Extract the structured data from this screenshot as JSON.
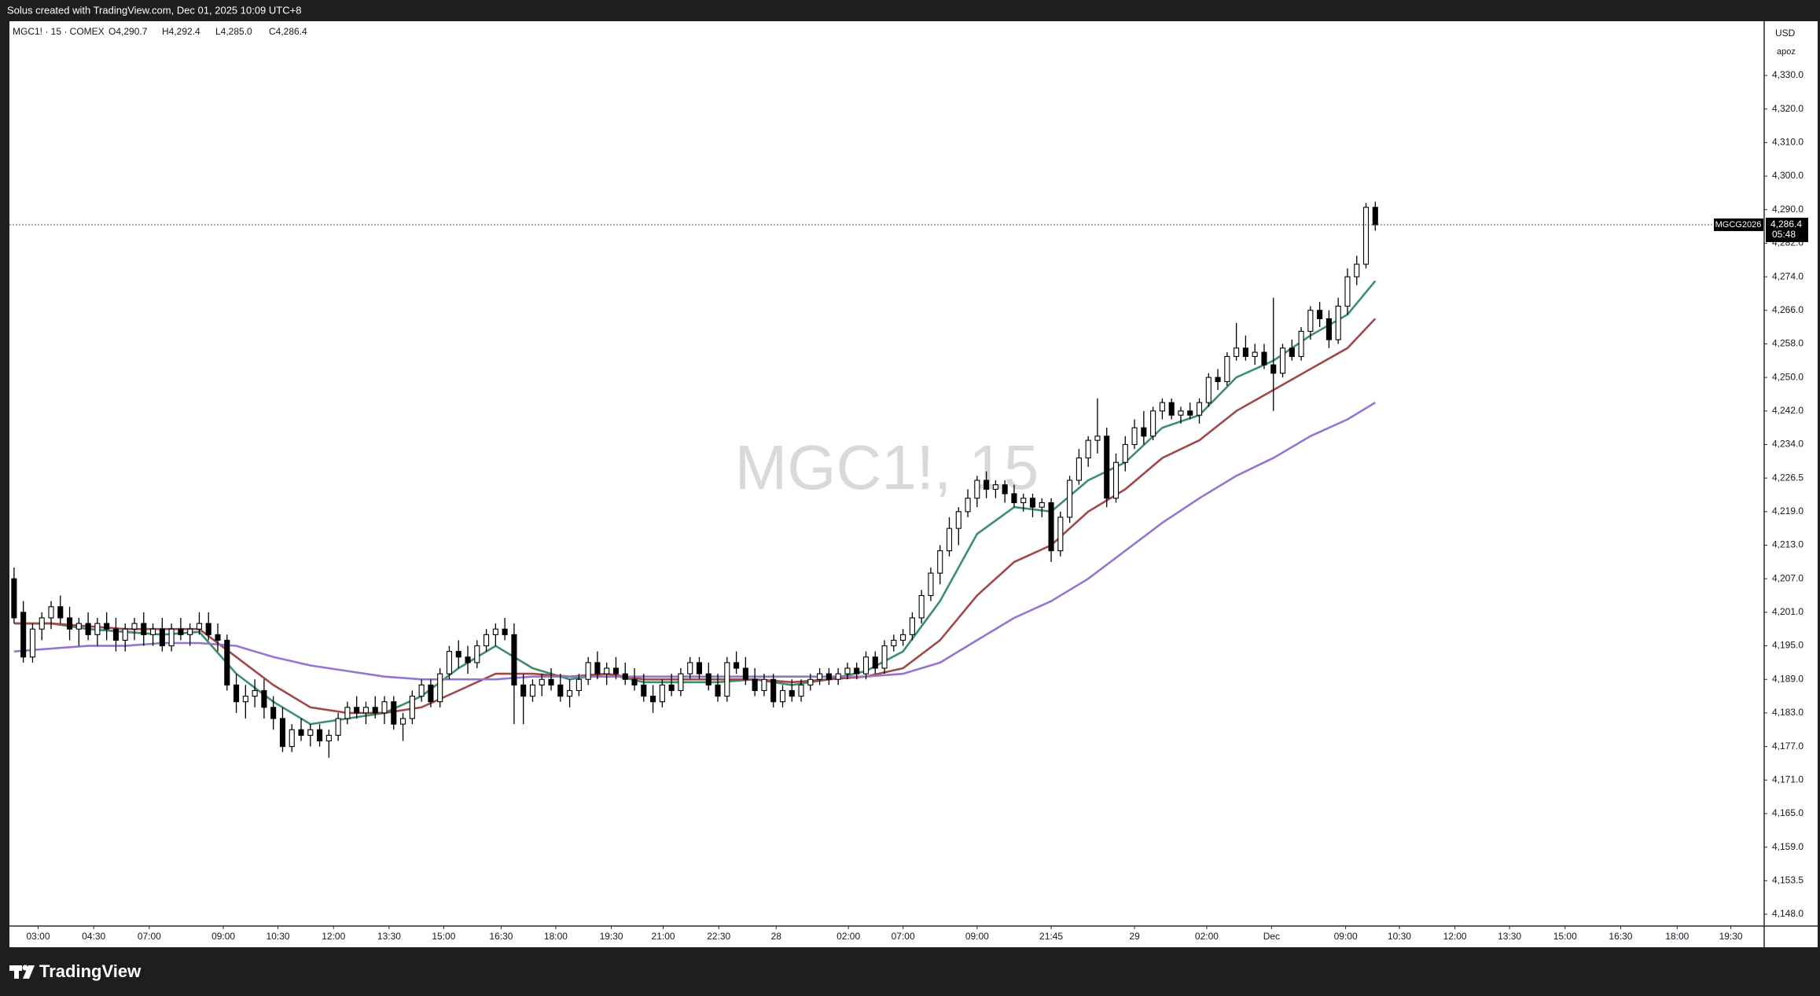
{
  "page": {
    "banner": "Solus created with TradingView.com, Dec 01, 2025 10:09 UTC+8",
    "symbol_info": "MGC1! · 15 · COMEX",
    "ohlc_legend": [
      "O4,290.7",
      "H4,292.4",
      "L4,285.0",
      "C4,286.4"
    ],
    "watermark": "MGC1!, 15",
    "currency": "USD",
    "scale_mode": "apoz",
    "brand": "TradingView"
  },
  "chart_data": {
    "type": "candlestick",
    "ohlc": [
      [
        4207,
        4209,
        4199,
        4200
      ],
      [
        4201,
        4203,
        4192,
        4193
      ],
      [
        4193,
        4199,
        4192,
        4198
      ],
      [
        4198,
        4201,
        4196,
        4200
      ],
      [
        4200,
        4203,
        4198,
        4202
      ],
      [
        4202,
        4204,
        4199,
        4200
      ],
      [
        4200,
        4202,
        4196,
        4198
      ],
      [
        4198,
        4200,
        4195,
        4199
      ],
      [
        4199,
        4201,
        4196,
        4197
      ],
      [
        4197,
        4200,
        4195,
        4199
      ],
      [
        4199,
        4201,
        4196,
        4198
      ],
      [
        4198,
        4200,
        4194,
        4196
      ],
      [
        4196,
        4199,
        4194,
        4198
      ],
      [
        4198,
        4200,
        4196,
        4199
      ],
      [
        4199,
        4201,
        4195,
        4197
      ],
      [
        4197,
        4199,
        4195,
        4198
      ],
      [
        4198,
        4200,
        4194,
        4195
      ],
      [
        4195,
        4199,
        4194,
        4198
      ],
      [
        4198,
        4200,
        4196,
        4197
      ],
      [
        4197,
        4199,
        4195,
        4198
      ],
      [
        4198,
        4201,
        4197,
        4199
      ],
      [
        4199,
        4201,
        4196,
        4197
      ],
      [
        4197,
        4199,
        4194,
        4196
      ],
      [
        4196,
        4197,
        4187,
        4188
      ],
      [
        4188,
        4190,
        4183,
        4185
      ],
      [
        4185,
        4188,
        4182,
        4186
      ],
      [
        4186,
        4189,
        4184,
        4187
      ],
      [
        4187,
        4189,
        4182,
        4184
      ],
      [
        4184,
        4186,
        4180,
        4182
      ],
      [
        4182,
        4184,
        4176,
        4177
      ],
      [
        4177,
        4181,
        4176,
        4180
      ],
      [
        4180,
        4182,
        4178,
        4179
      ],
      [
        4179,
        4181,
        4177,
        4180
      ],
      [
        4180,
        4181,
        4177,
        4178
      ],
      [
        4178,
        4180,
        4175,
        4179
      ],
      [
        4179,
        4183,
        4178,
        4182
      ],
      [
        4182,
        4185,
        4181,
        4184
      ],
      [
        4184,
        4186,
        4182,
        4183
      ],
      [
        4183,
        4185,
        4181,
        4184
      ],
      [
        4184,
        4186,
        4182,
        4183
      ],
      [
        4183,
        4186,
        4181,
        4185
      ],
      [
        4185,
        4186,
        4180,
        4181
      ],
      [
        4181,
        4183,
        4178,
        4182
      ],
      [
        4182,
        4187,
        4181,
        4186
      ],
      [
        4186,
        4189,
        4185,
        4188
      ],
      [
        4188,
        4189,
        4184,
        4185
      ],
      [
        4185,
        4191,
        4184,
        4190
      ],
      [
        4190,
        4195,
        4189,
        4194
      ],
      [
        4194,
        4196,
        4191,
        4193
      ],
      [
        4193,
        4195,
        4190,
        4192
      ],
      [
        4192,
        4196,
        4191,
        4195
      ],
      [
        4195,
        4198,
        4194,
        4197
      ],
      [
        4197,
        4199,
        4195,
        4198
      ],
      [
        4198,
        4200,
        4196,
        4197
      ],
      [
        4197,
        4199,
        4181,
        4188
      ],
      [
        4188,
        4190,
        4181,
        4186
      ],
      [
        4186,
        4189,
        4185,
        4188
      ],
      [
        4188,
        4190,
        4186,
        4189
      ],
      [
        4189,
        4191,
        4187,
        4188
      ],
      [
        4188,
        4190,
        4185,
        4186
      ],
      [
        4186,
        4189,
        4184,
        4187
      ],
      [
        4187,
        4190,
        4186,
        4189
      ],
      [
        4189,
        4193,
        4188,
        4192
      ],
      [
        4192,
        4194,
        4189,
        4190
      ],
      [
        4190,
        4192,
        4188,
        4191
      ],
      [
        4191,
        4193,
        4189,
        4190
      ],
      [
        4190,
        4192,
        4188,
        4189
      ],
      [
        4189,
        4191,
        4187,
        4188
      ],
      [
        4188,
        4190,
        4185,
        4186
      ],
      [
        4186,
        4188,
        4183,
        4185
      ],
      [
        4185,
        4189,
        4184,
        4188
      ],
      [
        4188,
        4190,
        4186,
        4187
      ],
      [
        4187,
        4191,
        4186,
        4190
      ],
      [
        4190,
        4193,
        4189,
        4192
      ],
      [
        4192,
        4193,
        4189,
        4190
      ],
      [
        4190,
        4192,
        4187,
        4188
      ],
      [
        4188,
        4190,
        4185,
        4186
      ],
      [
        4186,
        4193,
        4185,
        4192
      ],
      [
        4192,
        4194,
        4190,
        4191
      ],
      [
        4191,
        4193,
        4188,
        4189
      ],
      [
        4189,
        4191,
        4186,
        4187
      ],
      [
        4187,
        4190,
        4186,
        4189
      ],
      [
        4189,
        4190,
        4184,
        4185
      ],
      [
        4185,
        4188,
        4184,
        4187
      ],
      [
        4187,
        4189,
        4185,
        4186
      ],
      [
        4186,
        4189,
        4185,
        4188
      ],
      [
        4188,
        4190,
        4187,
        4189
      ],
      [
        4189,
        4191,
        4188,
        4190
      ],
      [
        4190,
        4191,
        4188,
        4189
      ],
      [
        4189,
        4191,
        4188,
        4190
      ],
      [
        4190,
        4192,
        4189,
        4191
      ],
      [
        4191,
        4192,
        4189,
        4190
      ],
      [
        4190,
        4194,
        4189,
        4193
      ],
      [
        4193,
        4194,
        4190,
        4191
      ],
      [
        4191,
        4196,
        4190,
        4195
      ],
      [
        4195,
        4197,
        4194,
        4196
      ],
      [
        4196,
        4198,
        4195,
        4197
      ],
      [
        4197,
        4201,
        4196,
        4200
      ],
      [
        4200,
        4205,
        4199,
        4204
      ],
      [
        4204,
        4209,
        4203,
        4208
      ],
      [
        4208,
        4213,
        4206,
        4212
      ],
      [
        4212,
        4218,
        4211,
        4216
      ],
      [
        4216,
        4220,
        4213,
        4219
      ],
      [
        4219,
        4224,
        4218,
        4222
      ],
      [
        4222,
        4227,
        4220,
        4226
      ],
      [
        4226,
        4228,
        4222,
        4224
      ],
      [
        4224,
        4226,
        4222,
        4225
      ],
      [
        4225,
        4226,
        4221,
        4223
      ],
      [
        4223,
        4225,
        4220,
        4221
      ],
      [
        4221,
        4223,
        4219,
        4222
      ],
      [
        4222,
        4223,
        4218,
        4220
      ],
      [
        4220,
        4222,
        4218,
        4221
      ],
      [
        4221,
        4222,
        4210,
        4212
      ],
      [
        4212,
        4219,
        4211,
        4218
      ],
      [
        4218,
        4227,
        4217,
        4226
      ],
      [
        4226,
        4233,
        4225,
        4231
      ],
      [
        4231,
        4236,
        4229,
        4235
      ],
      [
        4235,
        4245,
        4232,
        4236
      ],
      [
        4236,
        4238,
        4220,
        4222
      ],
      [
        4222,
        4232,
        4221,
        4230
      ],
      [
        4230,
        4236,
        4228,
        4234
      ],
      [
        4234,
        4240,
        4233,
        4238
      ],
      [
        4238,
        4242,
        4234,
        4236
      ],
      [
        4236,
        4243,
        4235,
        4242
      ],
      [
        4242,
        4245,
        4240,
        4244
      ],
      [
        4244,
        4245,
        4240,
        4241
      ],
      [
        4241,
        4243,
        4239,
        4242
      ],
      [
        4242,
        4244,
        4240,
        4241
      ],
      [
        4241,
        4245,
        4239,
        4244
      ],
      [
        4244,
        4251,
        4243,
        4250
      ],
      [
        4250,
        4252,
        4247,
        4249
      ],
      [
        4249,
        4256,
        4248,
        4255
      ],
      [
        4255,
        4263,
        4254,
        4257
      ],
      [
        4257,
        4260,
        4254,
        4255
      ],
      [
        4255,
        4258,
        4253,
        4256
      ],
      [
        4256,
        4258,
        4252,
        4253
      ],
      [
        4253,
        4269,
        4242,
        4251
      ],
      [
        4251,
        4258,
        4250,
        4257
      ],
      [
        4257,
        4259,
        4254,
        4255
      ],
      [
        4255,
        4262,
        4254,
        4261
      ],
      [
        4261,
        4267,
        4259,
        4266
      ],
      [
        4266,
        4268,
        4262,
        4264
      ],
      [
        4264,
        4266,
        4257,
        4259
      ],
      [
        4259,
        4269,
        4258,
        4267
      ],
      [
        4267,
        4276,
        4265,
        4274
      ],
      [
        4274,
        4279,
        4272,
        4277
      ],
      [
        4277,
        4292,
        4276,
        4290.7
      ],
      [
        4290.7,
        4292.4,
        4285,
        4286.4
      ]
    ],
    "up_color": "#ffffff",
    "down_color": "#000000",
    "wick_color": "#000000",
    "series": [
      {
        "color": "#3d8f6c",
        "x": [
          0,
          4,
          8,
          12,
          16,
          20,
          24,
          28,
          32,
          36,
          40,
          44,
          48,
          52,
          56,
          60,
          64,
          68,
          72,
          76,
          80,
          84,
          88,
          92,
          96,
          100,
          104,
          108,
          112,
          116,
          120,
          124,
          128,
          132,
          136,
          140,
          144,
          147
        ],
        "values": [
          4199,
          4199,
          4198,
          4197.5,
          4197,
          4197.5,
          4190,
          4185,
          4181,
          4182,
          4183,
          4186,
          4191,
          4195,
          4191,
          4189,
          4190,
          4188.5,
          4188.5,
          4188.5,
          4189,
          4188,
          4189,
          4190.5,
          4194,
          4203,
          4215,
          4220,
          4219,
          4226,
          4230,
          4238,
          4241,
          4250,
          4254,
          4260,
          4265,
          4273
        ]
      },
      {
        "color": "#a3484a",
        "x": [
          0,
          4,
          8,
          12,
          16,
          20,
          24,
          28,
          32,
          36,
          40,
          44,
          48,
          52,
          56,
          60,
          64,
          68,
          72,
          76,
          80,
          84,
          88,
          92,
          96,
          100,
          104,
          108,
          112,
          116,
          120,
          124,
          128,
          132,
          136,
          140,
          144,
          147
        ],
        "values": [
          4199,
          4199,
          4198.5,
          4198,
          4198,
          4198,
          4193,
          4188,
          4184,
          4183,
          4183,
          4184,
          4187,
          4190,
          4190,
          4189.5,
          4190,
          4189,
          4189,
          4189,
          4189,
          4188.5,
          4189,
          4189.5,
          4191,
          4196,
          4204,
          4210,
          4213,
          4219,
          4224,
          4231,
          4235,
          4242,
          4247,
          4252,
          4257,
          4264
        ]
      },
      {
        "color": "#9575d2",
        "x": [
          0,
          4,
          8,
          12,
          16,
          20,
          24,
          28,
          32,
          36,
          40,
          44,
          48,
          52,
          56,
          60,
          64,
          68,
          72,
          76,
          80,
          84,
          88,
          92,
          96,
          100,
          104,
          108,
          112,
          116,
          120,
          124,
          128,
          132,
          136,
          140,
          144,
          147
        ],
        "values": [
          4194,
          4194.5,
          4195,
          4195,
          4195.5,
          4195.5,
          4195,
          4193,
          4191.5,
          4190.5,
          4189.5,
          4189,
          4189,
          4189,
          4189.5,
          4189.5,
          4189.5,
          4189.5,
          4189.5,
          4189.5,
          4189.5,
          4189.5,
          4189.5,
          4189.5,
          4190,
          4192,
          4196,
          4200,
          4203,
          4207,
          4212,
          4217,
          4222,
          4227,
          4231,
          4236,
          4240,
          4244
        ]
      }
    ],
    "xlim": [
      -0.5,
      189
    ],
    "xticks": [
      {
        "value": 2.6,
        "label": "03:00"
      },
      {
        "value": 8.6,
        "label": "04:30"
      },
      {
        "value": 14.6,
        "label": "07:00"
      },
      {
        "value": 22.6,
        "label": "09:00"
      },
      {
        "value": 28.5,
        "label": "10:30"
      },
      {
        "value": 34.5,
        "label": "12:00"
      },
      {
        "value": 40.5,
        "label": "13:30"
      },
      {
        "value": 46.4,
        "label": "15:00"
      },
      {
        "value": 52.6,
        "label": "16:30"
      },
      {
        "value": 58.5,
        "label": "18:00"
      },
      {
        "value": 64.5,
        "label": "19:30"
      },
      {
        "value": 70.1,
        "label": "21:00"
      },
      {
        "value": 76.1,
        "label": "22:30"
      },
      {
        "value": 82.3,
        "label": "28"
      },
      {
        "value": 90.1,
        "label": "02:00"
      },
      {
        "value": 96,
        "label": "07:00"
      },
      {
        "value": 104,
        "label": "09:00"
      },
      {
        "value": 112,
        "label": "21:45"
      },
      {
        "value": 121,
        "label": "29"
      },
      {
        "value": 128.8,
        "label": "02:00"
      },
      {
        "value": 135.8,
        "label": "Dec"
      },
      {
        "value": 143.8,
        "label": "09:00"
      },
      {
        "value": 149.6,
        "label": "10:30"
      },
      {
        "value": 155.6,
        "label": "12:00"
      },
      {
        "value": 161.5,
        "label": "13:30"
      },
      {
        "value": 167.5,
        "label": "15:00"
      },
      {
        "value": 173.5,
        "label": "16:30"
      },
      {
        "value": 179.6,
        "label": "18:00"
      },
      {
        "value": 185.4,
        "label": "19:30"
      }
    ],
    "ylim": [
      4146.1,
      4346.2
    ],
    "yticks": [
      {
        "value": 4330,
        "label": "4,330.0"
      },
      {
        "value": 4320,
        "label": "4,320.0"
      },
      {
        "value": 4310,
        "label": "4,310.0"
      },
      {
        "value": 4300,
        "label": "4,300.0"
      },
      {
        "value": 4290,
        "label": "4,290.0"
      },
      {
        "value": 4282,
        "label": "4,282.0"
      },
      {
        "value": 4274,
        "label": "4,274.0"
      },
      {
        "value": 4266,
        "label": "4,266.0"
      },
      {
        "value": 4258,
        "label": "4,258.0"
      },
      {
        "value": 4250,
        "label": "4,250.0"
      },
      {
        "value": 4242,
        "label": "4,242.0"
      },
      {
        "value": 4234,
        "label": "4,234.0"
      },
      {
        "value": 4226.5,
        "label": "4,226.5"
      },
      {
        "value": 4219,
        "label": "4,219.0"
      },
      {
        "value": 4213,
        "label": "4,213.0"
      },
      {
        "value": 4207,
        "label": "4,207.0"
      },
      {
        "value": 4201,
        "label": "4,201.0"
      },
      {
        "value": 4195,
        "label": "4,195.0"
      },
      {
        "value": 4189,
        "label": "4,189.0"
      },
      {
        "value": 4183,
        "label": "4,183.0"
      },
      {
        "value": 4177,
        "label": "4,177.0"
      },
      {
        "value": 4171,
        "label": "4,171.0"
      },
      {
        "value": 4165,
        "label": "4,165.0"
      },
      {
        "value": 4159,
        "label": "4,159.0"
      },
      {
        "value": 4153.5,
        "label": "4,153.5"
      },
      {
        "value": 4148,
        "label": "4,148.0"
      }
    ],
    "grid": false,
    "last_price": {
      "value": 4286.4,
      "label": "4,286.4"
    },
    "contract": "MGCG2026",
    "countdown": "05:48"
  }
}
